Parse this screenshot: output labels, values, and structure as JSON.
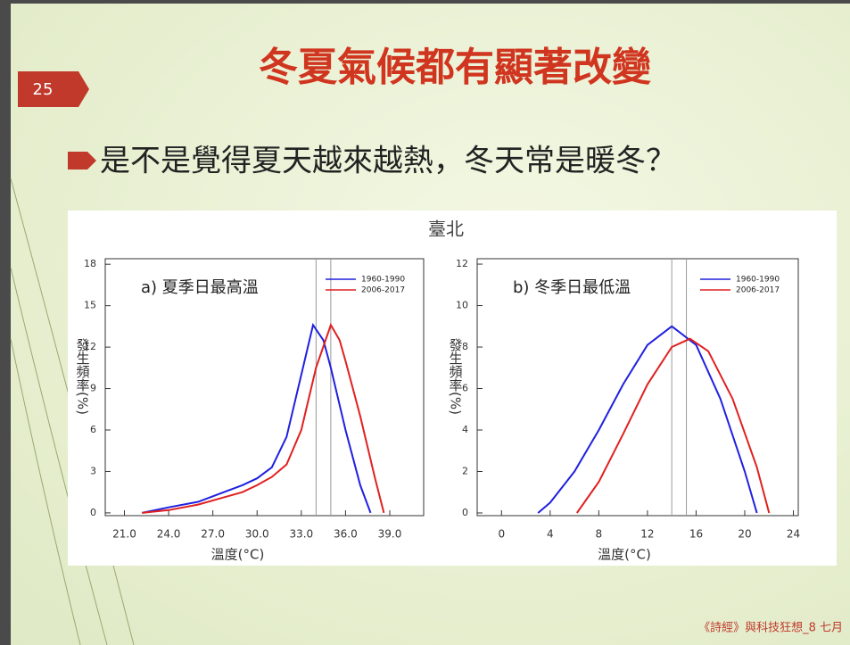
{
  "slide": {
    "page_number": "25",
    "title": "冬夏氣候都有顯著改變",
    "bullet": "是不是覺得夏天越來越熱，冬天常是暖冬？",
    "figure_title": "臺北",
    "footer": "《詩經》與科技狂想_8 七月"
  },
  "chart_data": [
    {
      "type": "line",
      "subtitle": "a) 夏季日最高溫",
      "xlabel": "溫度(°C)",
      "ylabel": "發生頻率(%)",
      "xlim": [
        19.7,
        41.3
      ],
      "ylim": [
        -0.2,
        18.4
      ],
      "xticks": [
        {
          "value": 21,
          "label": "21.0"
        },
        {
          "value": 24,
          "label": "24.0"
        },
        {
          "value": 27,
          "label": "27.0"
        },
        {
          "value": 30,
          "label": "30.0"
        },
        {
          "value": 33,
          "label": "33.0"
        },
        {
          "value": 36,
          "label": "36.0"
        },
        {
          "value": 39,
          "label": "39.0"
        }
      ],
      "yticks": [
        0,
        3,
        6,
        9,
        12,
        15,
        18
      ],
      "reference_lines": [
        34.0,
        35.0
      ],
      "legend": "upper right",
      "series": [
        {
          "name": "1960-1990",
          "color": "#2020e0",
          "x": [
            22.2,
            24,
            26,
            28,
            29,
            30,
            31,
            32,
            33,
            33.8,
            34.5,
            35,
            36,
            37,
            37.7
          ],
          "values": [
            0,
            0.4,
            0.8,
            1.6,
            2.0,
            2.5,
            3.3,
            5.5,
            10,
            13.6,
            12.5,
            10.5,
            6,
            2,
            0
          ]
        },
        {
          "name": "2006-2017",
          "color": "#e02020",
          "x": [
            22.2,
            24,
            26,
            28,
            29,
            30,
            31,
            32,
            33,
            34,
            35,
            35.6,
            36,
            37,
            38,
            38.6
          ],
          "values": [
            0,
            0.2,
            0.6,
            1.2,
            1.5,
            2.0,
            2.6,
            3.5,
            6,
            10.5,
            13.6,
            12.5,
            11,
            7,
            2.5,
            0
          ]
        }
      ]
    },
    {
      "type": "line",
      "subtitle": "b) 冬季日最低溫",
      "xlabel": "溫度(°C)",
      "ylabel": "發生頻率(%)",
      "xlim": [
        -2,
        24.4
      ],
      "ylim": [
        -0.13,
        12.26
      ],
      "xticks": [
        0,
        4,
        8,
        12,
        16,
        20,
        24
      ],
      "yticks": [
        0,
        2,
        4,
        6,
        8,
        10,
        12
      ],
      "reference_lines": [
        14,
        15.2
      ],
      "legend": "upper right",
      "series": [
        {
          "name": "1960-1990",
          "color": "#2020e0",
          "x": [
            3,
            4,
            6,
            8,
            10,
            12,
            14,
            16,
            18,
            20,
            21
          ],
          "values": [
            0,
            0.5,
            2,
            4,
            6.2,
            8.1,
            9.0,
            8.1,
            5.5,
            2,
            0
          ]
        },
        {
          "name": "2006-2017",
          "color": "#e02020",
          "x": [
            6.2,
            8,
            10,
            12,
            14,
            15.5,
            17,
            19,
            21,
            22
          ],
          "values": [
            0,
            1.5,
            3.8,
            6.2,
            8,
            8.4,
            7.8,
            5.5,
            2.2,
            0
          ]
        }
      ]
    }
  ]
}
